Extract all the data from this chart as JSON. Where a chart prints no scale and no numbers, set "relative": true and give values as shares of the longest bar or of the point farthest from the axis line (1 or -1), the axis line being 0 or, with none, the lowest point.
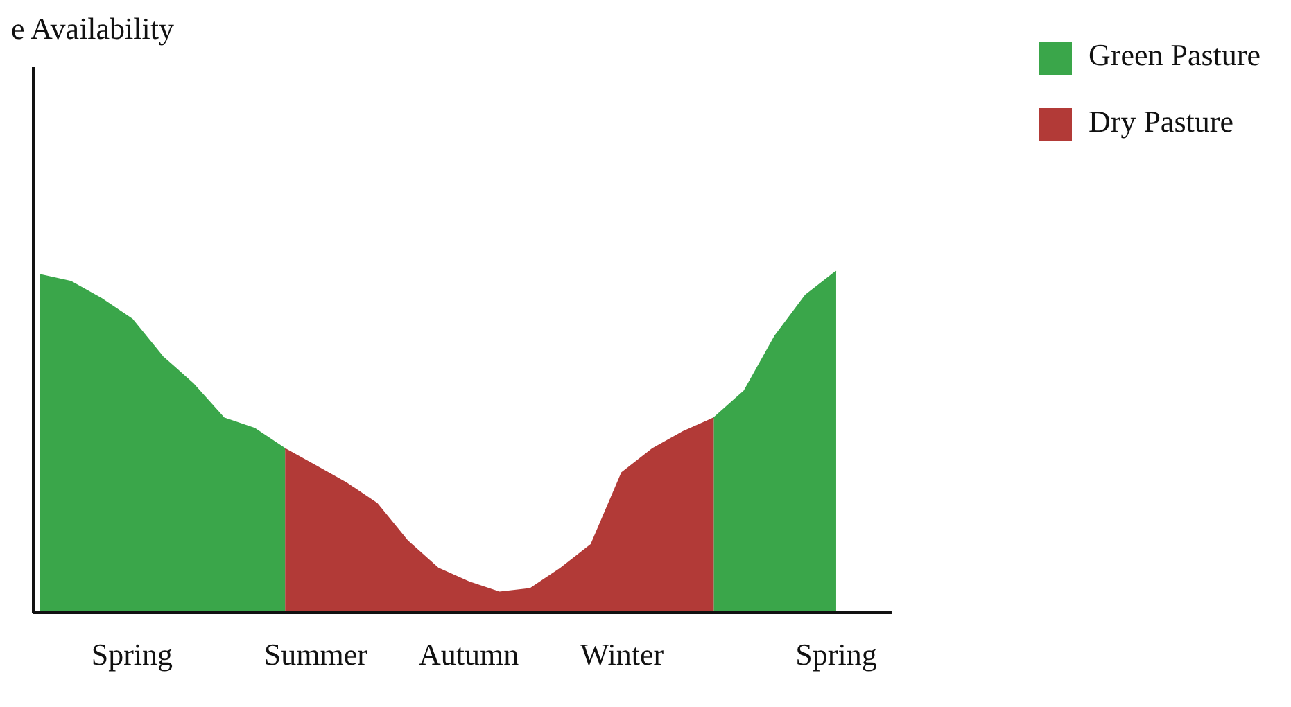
{
  "chart_data": {
    "type": "area",
    "title": "e Availability",
    "relative": true,
    "legend": "top right",
    "grid": false,
    "categories": [
      null,
      null,
      null,
      "Spring",
      null,
      null,
      null,
      null,
      null,
      "Summer",
      null,
      null,
      null,
      null,
      "Autumn",
      null,
      null,
      null,
      null,
      "Winter",
      null,
      null,
      null,
      null,
      null,
      null,
      "Spring"
    ],
    "series": [
      {
        "name": "Green Pasture",
        "color": "#3aa64a",
        "values": [
          0.99,
          0.97,
          0.92,
          0.86,
          0.75,
          0.67,
          0.57,
          0.54,
          0.48,
          null,
          null,
          null,
          null,
          null,
          null,
          null,
          null,
          null,
          null,
          null,
          null,
          null,
          0.57,
          0.65,
          0.81,
          0.93,
          1
        ]
      },
      {
        "name": "Dry Pasture",
        "color": "#b23a37",
        "values": [
          null,
          null,
          null,
          null,
          null,
          null,
          null,
          null,
          0.48,
          0.43,
          0.38,
          0.32,
          0.21,
          0.13,
          0.09,
          0.06,
          0.07,
          0.13,
          0.2,
          0.41,
          0.48,
          0.53,
          0.57,
          null,
          null,
          null,
          null
        ]
      }
    ]
  }
}
